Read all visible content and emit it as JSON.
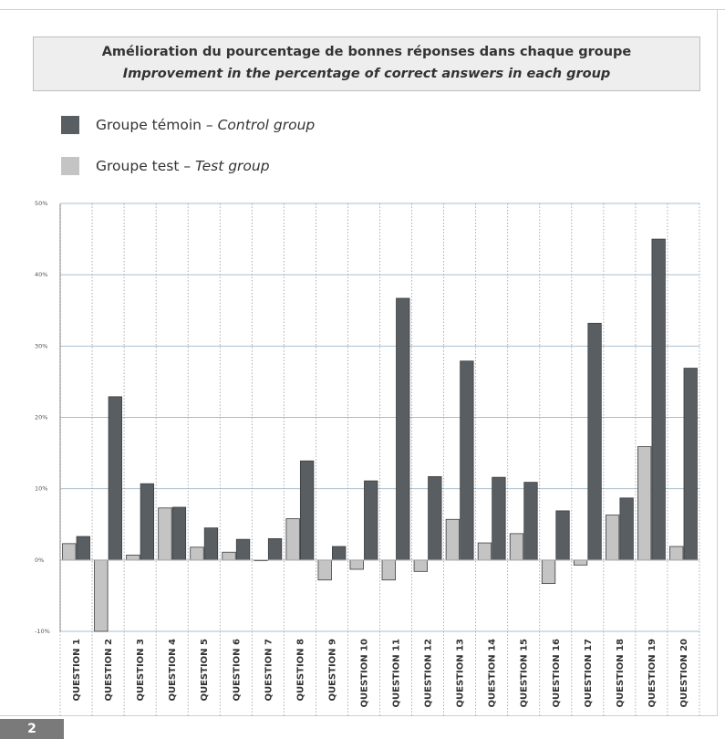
{
  "title": {
    "line1": "Amélioration du pourcentage de bonnes réponses dans chaque groupe",
    "line2": "Improvement in the percentage of correct answers in each group"
  },
  "legend": {
    "control": {
      "fr": "Groupe témoin",
      "dash": "–",
      "en": "Control group",
      "color": "#595e63"
    },
    "test": {
      "fr": "Groupe test",
      "dash": "–",
      "en": "Test group",
      "color": "#c4c4c4"
    }
  },
  "page_number": "2",
  "chart_data": {
    "type": "bar",
    "categories": [
      "QUESTION 1",
      "QUESTION 2",
      "QUESTION 3",
      "QUESTION 4",
      "QUESTION 5",
      "QUESTION 6",
      "QUESTION 7",
      "QUESTION 8",
      "QUESTION 9",
      "QUESTION 10",
      "QUESTION 11",
      "QUESTION 12",
      "QUESTION 13",
      "QUESTION 14",
      "QUESTION 15",
      "QUESTION 16",
      "QUESTION 17",
      "QUESTION 18",
      "QUESTION 19",
      "QUESTION 20"
    ],
    "series": [
      {
        "name": "Groupe test – Test group",
        "color": "#c4c4c4",
        "values": [
          2.3,
          -10,
          0.7,
          7.3,
          1.8,
          1.1,
          -0.1,
          5.8,
          -2.8,
          -1.3,
          -2.8,
          -1.6,
          5.7,
          2.4,
          3.7,
          -3.3,
          -0.7,
          6.3,
          15.9,
          1.9
        ]
      },
      {
        "name": "Groupe témoin – Control group",
        "color": "#595e63",
        "values": [
          3.3,
          22.9,
          10.7,
          7.4,
          4.5,
          2.9,
          3.0,
          13.9,
          1.9,
          11.1,
          36.7,
          11.7,
          27.9,
          11.6,
          10.9,
          6.9,
          33.2,
          8.7,
          45.0,
          26.9
        ]
      }
    ],
    "ylim": [
      -10,
      50
    ],
    "yticks": [
      "-10%",
      "0%",
      "10%",
      "20%",
      "30%",
      "40%",
      "50%"
    ],
    "ytick_values": [
      -10,
      0,
      10,
      20,
      30,
      40,
      50
    ],
    "grid": true,
    "legend_position": "top-left"
  }
}
